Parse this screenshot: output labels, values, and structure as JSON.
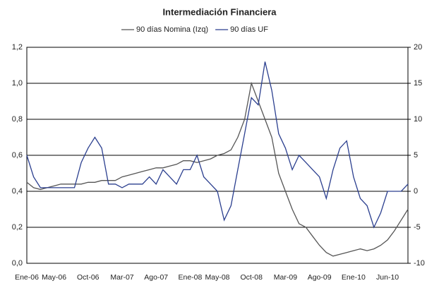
{
  "chart_data": {
    "type": "line",
    "title": "Intermediación Financiera",
    "categories": [
      "Ene-06",
      null,
      null,
      null,
      "May-06",
      null,
      null,
      null,
      null,
      "Oct-06",
      null,
      null,
      null,
      null,
      "Mar-07",
      null,
      null,
      null,
      null,
      "Ago-07",
      null,
      null,
      null,
      null,
      "Ene-08",
      null,
      null,
      null,
      "May-08",
      null,
      null,
      null,
      null,
      "Oct-08",
      null,
      null,
      null,
      null,
      "Mar-09",
      null,
      null,
      null,
      null,
      "Ago-09",
      null,
      null,
      null,
      null,
      "Ene-10",
      null,
      null,
      null,
      null,
      "Jun-10",
      null,
      null,
      null
    ],
    "series": [
      {
        "name": "90 días Nomina (Izq)",
        "color": "#555555",
        "axis": "y",
        "values": [
          0.45,
          0.42,
          0.41,
          0.42,
          0.43,
          0.44,
          0.44,
          0.44,
          0.44,
          0.45,
          0.45,
          0.46,
          0.46,
          0.46,
          0.48,
          0.49,
          0.5,
          0.51,
          0.52,
          0.53,
          0.53,
          0.54,
          0.55,
          0.57,
          0.57,
          0.56,
          0.57,
          0.58,
          0.6,
          0.61,
          0.63,
          0.7,
          0.8,
          1.0,
          0.9,
          0.8,
          0.7,
          0.5,
          0.4,
          0.3,
          0.22,
          0.2,
          0.15,
          0.1,
          0.06,
          0.04,
          0.05,
          0.06,
          0.07,
          0.08,
          0.07,
          0.08,
          0.1,
          0.13,
          0.18,
          0.24,
          0.3
        ]
      },
      {
        "name": "90 días UF",
        "color": "#2b3f8f",
        "axis": "y2",
        "values": [
          5,
          2,
          0.5,
          0.5,
          0.5,
          0.5,
          0.5,
          0.5,
          4,
          6,
          7.5,
          6,
          1,
          1,
          0.5,
          1,
          1,
          1,
          2,
          1,
          3,
          2,
          1,
          3,
          3,
          5,
          2,
          1,
          0,
          -4,
          -2,
          3,
          8,
          13,
          12,
          18,
          14,
          8,
          6,
          3,
          5,
          4,
          3,
          2,
          -1,
          3,
          6,
          7,
          2,
          -1,
          -2,
          -5,
          -3,
          0,
          0,
          0,
          1
        ]
      }
    ],
    "ylim": [
      0,
      1.2
    ],
    "yticks": [
      {
        "value": 0,
        "label": "0,0"
      },
      {
        "value": 0.2,
        "label": "0,2"
      },
      {
        "value": 0.4,
        "label": "0,4"
      },
      {
        "value": 0.6,
        "label": "0,6"
      },
      {
        "value": 0.8,
        "label": "0,8"
      },
      {
        "value": 1.0,
        "label": "1,0"
      },
      {
        "value": 1.2,
        "label": "1,2"
      }
    ],
    "y2lim": [
      -10,
      20
    ],
    "y2ticks": [
      -10,
      -5,
      0,
      5,
      10,
      15,
      20
    ],
    "grid": true
  }
}
